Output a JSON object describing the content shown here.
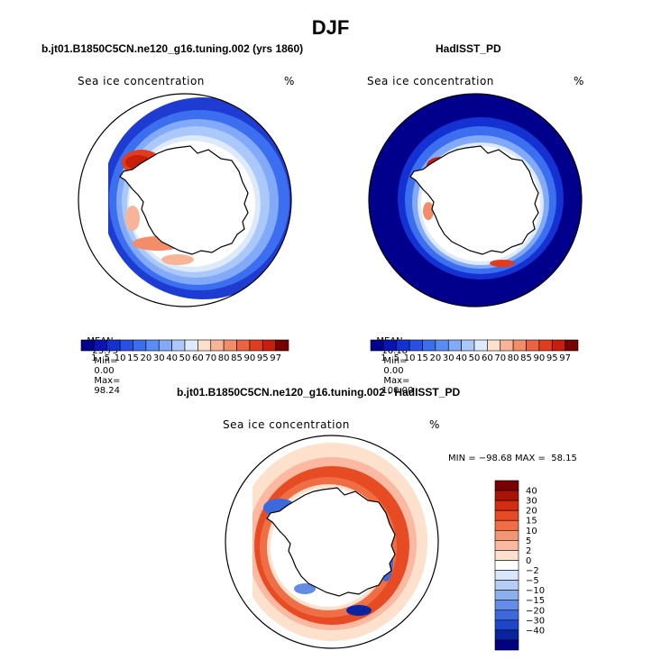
{
  "title": "DJF",
  "panels": [
    {
      "id": "model",
      "title": "b.jt01.B1850C5CN.ne120_g16.tuning.002 (yrs 1860)",
      "variable": "Sea ice concentration",
      "units": "%",
      "stats": {
        "mean_label": "MEAN=",
        "mean": "23.73",
        "min_label": "Min=",
        "min": "0.00",
        "max_label": "Max=",
        "max": "98.24"
      }
    },
    {
      "id": "obs",
      "title": "HadISST_PD",
      "variable": "Sea ice concentration",
      "units": "%",
      "stats": {
        "mean_label": "MEAN=",
        "mean": "16.18",
        "min_label": "Min=",
        "min": "0.00",
        "max_label": "Max=",
        "max": "100.00"
      }
    },
    {
      "id": "diff",
      "title": "b.jt01.B1850C5CN.ne120_g16.tuning.002 - HadISST_PD",
      "variable": "Sea ice concentration",
      "units": "%",
      "stats_text": "MIN = −98.68 MAX =  58.15"
    }
  ],
  "colorbar_abs": {
    "labels": [
      "1",
      "5",
      "10",
      "15",
      "20",
      "30",
      "40",
      "50",
      "60",
      "70",
      "80",
      "85",
      "90",
      "95",
      "97"
    ],
    "colors": [
      "#00008c",
      "#0a14b4",
      "#1432d2",
      "#2850e6",
      "#3c6ef0",
      "#5a8cf5",
      "#82aaf8",
      "#aac8fa",
      "#dceafc",
      "#fde0cc",
      "#f8b496",
      "#f28c69",
      "#eb6441",
      "#e13c1e",
      "#c81e0a",
      "#780000"
    ]
  },
  "colorbar_diff": {
    "labels": [
      "40",
      "30",
      "20",
      "15",
      "10",
      "5",
      "2",
      "0",
      "−2",
      "−5",
      "−10",
      "−15",
      "−20",
      "−30",
      "−40"
    ],
    "colors": [
      "#780000",
      "#aa1405",
      "#d22d0f",
      "#e64b23",
      "#f06e46",
      "#f59673",
      "#fab9a0",
      "#fde1cd",
      "#ffffff",
      "#d7e6fa",
      "#b4cdf5",
      "#8cafee",
      "#648ce6",
      "#3c69dc",
      "#1e46c8",
      "#0a23a0",
      "#000080"
    ]
  }
}
